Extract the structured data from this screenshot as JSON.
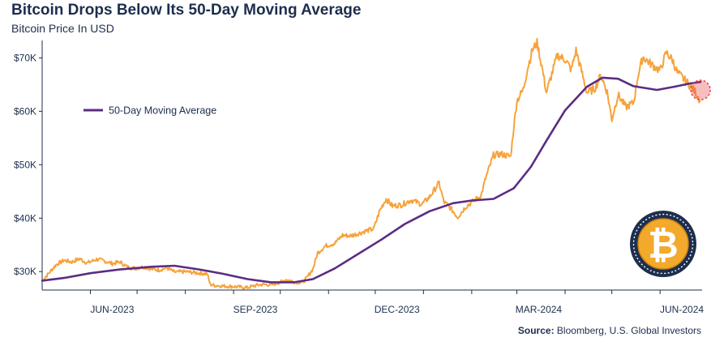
{
  "header": {
    "title": "Bitcoin Drops Below Its 50-Day Moving Average",
    "subtitle": "Bitcoin Price In USD"
  },
  "source": {
    "label": "Source:",
    "text": "Bloomberg, U.S. Global Investors"
  },
  "logo": {
    "icon": "bitcoin-coin-icon",
    "glyph": "₿"
  },
  "colors": {
    "price": "#f6a33b",
    "moving_average": "#5b2c83",
    "highlight": "#e8464b",
    "text": "#1d2e4e",
    "coin_gold": "#f3a92b",
    "coin_ring": "#1d2e4e"
  },
  "chart_data": {
    "type": "line",
    "xlim": [
      "2023-05-01",
      "2024-06-28"
    ],
    "ylim": [
      27000,
      72500
    ],
    "yticks": [
      {
        "value": 30000,
        "label": "$30K"
      },
      {
        "value": 40000,
        "label": "$40K"
      },
      {
        "value": 50000,
        "label": "$50K"
      },
      {
        "value": 60000,
        "label": "$60K"
      },
      {
        "value": 70000,
        "label": "$70K"
      }
    ],
    "xticks": [
      {
        "date": "2023-06-15",
        "label": "JUN-2023"
      },
      {
        "date": "2023-09-15",
        "label": "SEP-2023"
      },
      {
        "date": "2023-12-15",
        "label": "DEC-2023"
      },
      {
        "date": "2024-03-15",
        "label": "MAR-2024"
      },
      {
        "date": "2024-06-15",
        "label": "JUN-2024"
      }
    ],
    "grid": false,
    "legend_position": "left-upper",
    "series": [
      {
        "name": "",
        "color": "#f6a33b",
        "points": [
          [
            "2023-05-01",
            28300
          ],
          [
            "2023-05-05",
            29600
          ],
          [
            "2023-05-10",
            31300
          ],
          [
            "2023-05-15",
            32100
          ],
          [
            "2023-05-20",
            31800
          ],
          [
            "2023-05-25",
            32400
          ],
          [
            "2023-05-30",
            31600
          ],
          [
            "2023-06-05",
            32300
          ],
          [
            "2023-06-10",
            32000
          ],
          [
            "2023-06-15",
            31500
          ],
          [
            "2023-06-20",
            31800
          ],
          [
            "2023-06-25",
            30800
          ],
          [
            "2023-06-30",
            30600
          ],
          [
            "2023-07-05",
            30900
          ],
          [
            "2023-07-10",
            30500
          ],
          [
            "2023-07-15",
            30300
          ],
          [
            "2023-07-20",
            30700
          ],
          [
            "2023-07-25",
            29900
          ],
          [
            "2023-08-01",
            30000
          ],
          [
            "2023-08-10",
            29700
          ],
          [
            "2023-08-15",
            29600
          ],
          [
            "2023-08-17",
            27600
          ],
          [
            "2023-08-20",
            27400
          ],
          [
            "2023-08-25",
            27300
          ],
          [
            "2023-09-01",
            27200
          ],
          [
            "2023-09-05",
            27100
          ],
          [
            "2023-09-10",
            27000
          ],
          [
            "2023-09-15",
            27400
          ],
          [
            "2023-09-20",
            27600
          ],
          [
            "2023-09-25",
            27500
          ],
          [
            "2023-10-01",
            28000
          ],
          [
            "2023-10-05",
            28500
          ],
          [
            "2023-10-10",
            28100
          ],
          [
            "2023-10-15",
            27900
          ],
          [
            "2023-10-18",
            28800
          ],
          [
            "2023-10-22",
            30500
          ],
          [
            "2023-10-25",
            33500
          ],
          [
            "2023-10-30",
            34800
          ],
          [
            "2023-11-05",
            35300
          ],
          [
            "2023-11-10",
            36800
          ],
          [
            "2023-11-15",
            36700
          ],
          [
            "2023-11-20",
            37100
          ],
          [
            "2023-11-25",
            37600
          ],
          [
            "2023-11-30",
            38000
          ],
          [
            "2023-12-04",
            41500
          ],
          [
            "2023-12-08",
            43600
          ],
          [
            "2023-12-12",
            42300
          ],
          [
            "2023-12-18",
            42500
          ],
          [
            "2023-12-24",
            43400
          ],
          [
            "2023-12-31",
            42600
          ],
          [
            "2024-01-05",
            44000
          ],
          [
            "2024-01-11",
            46600
          ],
          [
            "2024-01-14",
            43100
          ],
          [
            "2024-01-18",
            42000
          ],
          [
            "2024-01-23",
            40200
          ],
          [
            "2024-01-28",
            42100
          ],
          [
            "2024-02-02",
            43200
          ],
          [
            "2024-02-07",
            44200
          ],
          [
            "2024-02-10",
            47500
          ],
          [
            "2024-02-15",
            51800
          ],
          [
            "2024-02-20",
            52000
          ],
          [
            "2024-02-26",
            51500
          ],
          [
            "2024-02-28",
            57000
          ],
          [
            "2024-03-01",
            62000
          ],
          [
            "2024-03-05",
            64000
          ],
          [
            "2024-03-08",
            68200
          ],
          [
            "2024-03-11",
            71500
          ],
          [
            "2024-03-14",
            72800
          ],
          [
            "2024-03-17",
            68500
          ],
          [
            "2024-03-20",
            63500
          ],
          [
            "2024-03-23",
            66500
          ],
          [
            "2024-03-27",
            70500
          ],
          [
            "2024-04-01",
            69700
          ],
          [
            "2024-04-05",
            67800
          ],
          [
            "2024-04-08",
            71400
          ],
          [
            "2024-04-12",
            67000
          ],
          [
            "2024-04-15",
            63500
          ],
          [
            "2024-04-20",
            64200
          ],
          [
            "2024-04-24",
            66800
          ],
          [
            "2024-04-28",
            63600
          ],
          [
            "2024-05-01",
            58500
          ],
          [
            "2024-05-05",
            63100
          ],
          [
            "2024-05-10",
            60800
          ],
          [
            "2024-05-15",
            61600
          ],
          [
            "2024-05-18",
            66900
          ],
          [
            "2024-05-21",
            70200
          ],
          [
            "2024-05-26",
            68900
          ],
          [
            "2024-06-01",
            67600
          ],
          [
            "2024-06-05",
            71000
          ],
          [
            "2024-06-09",
            69600
          ],
          [
            "2024-06-12",
            67300
          ],
          [
            "2024-06-16",
            66100
          ],
          [
            "2024-06-20",
            64900
          ],
          [
            "2024-06-24",
            63500
          ],
          [
            "2024-06-27",
            61800
          ]
        ]
      },
      {
        "name": "50-Day Moving Average",
        "color": "#5b2c83",
        "points": [
          [
            "2023-05-01",
            28300
          ],
          [
            "2023-05-15",
            28800
          ],
          [
            "2023-06-01",
            29700
          ],
          [
            "2023-06-20",
            30400
          ],
          [
            "2023-07-10",
            30900
          ],
          [
            "2023-07-25",
            31100
          ],
          [
            "2023-08-10",
            30400
          ],
          [
            "2023-08-25",
            29600
          ],
          [
            "2023-09-10",
            28600
          ],
          [
            "2023-09-25",
            28000
          ],
          [
            "2023-10-10",
            28000
          ],
          [
            "2023-10-22",
            28600
          ],
          [
            "2023-11-05",
            30600
          ],
          [
            "2023-11-20",
            33300
          ],
          [
            "2023-12-05",
            36000
          ],
          [
            "2023-12-20",
            38900
          ],
          [
            "2024-01-05",
            41300
          ],
          [
            "2024-01-20",
            42800
          ],
          [
            "2024-02-01",
            43300
          ],
          [
            "2024-02-15",
            43600
          ],
          [
            "2024-02-28",
            45600
          ],
          [
            "2024-03-10",
            49600
          ],
          [
            "2024-03-20",
            54500
          ],
          [
            "2024-04-01",
            60200
          ],
          [
            "2024-04-15",
            64600
          ],
          [
            "2024-04-25",
            66300
          ],
          [
            "2024-05-05",
            66100
          ],
          [
            "2024-05-15",
            64700
          ],
          [
            "2024-05-30",
            64000
          ],
          [
            "2024-06-10",
            64600
          ],
          [
            "2024-06-20",
            65200
          ],
          [
            "2024-06-27",
            65500
          ]
        ]
      }
    ],
    "annotations": [
      {
        "type": "circle-marker",
        "date": "2024-06-27",
        "value": 64000
      }
    ]
  }
}
